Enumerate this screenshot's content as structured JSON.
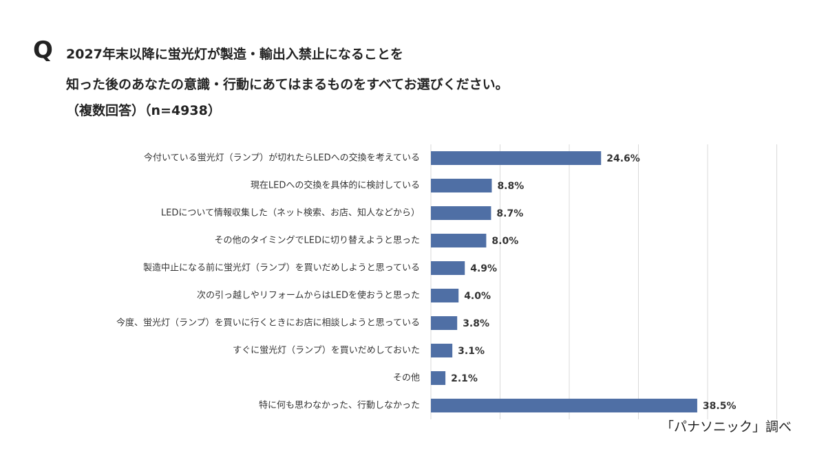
{
  "question": {
    "mark": "Q",
    "line1": "2027年末以降に蛍光灯が製造・輸出入禁止になることを",
    "line2": "知った後のあなたの意識・行動にあてはまるものをすべてお選びください。",
    "line3": "（複数回答）（n=4938）"
  },
  "source_note": "「パナソニック」調べ",
  "chart_data": {
    "type": "bar",
    "orientation": "horizontal",
    "title": "2027年末以降に蛍光灯が製造・輸出入禁止になることを知った後のあなたの意識・行動にあてはまるものをすべてお選びください。（複数回答）（n=4938）",
    "categories": [
      "今付いている蛍光灯（ランプ）が切れたらLEDへの交換を考えている",
      "現在LEDへの交換を具体的に検討している",
      "LEDについて情報収集した（ネット検索、お店、知人などから）",
      "その他のタイミングでLEDに切り替えようと思った",
      "製造中止になる前に蛍光灯（ランプ）を買いだめしようと思っている",
      "次の引っ越しやリフォームからはLEDを使おうと思った",
      "今度、蛍光灯（ランプ）を買いに行くときにお店に相談しようと思っている",
      "すぐに蛍光灯（ランプ）を買いだめしておいた",
      "その他",
      "特に何も思わなかった、行動しなかった"
    ],
    "values": [
      24.6,
      8.8,
      8.7,
      8.0,
      4.9,
      4.0,
      3.8,
      3.1,
      2.1,
      38.5
    ],
    "value_labels": [
      "24.6%",
      "8.8%",
      "8.7%",
      "8.0%",
      "4.9%",
      "4.0%",
      "3.8%",
      "3.1%",
      "2.1%",
      "38.5%"
    ],
    "unit": "%",
    "xlim": [
      0,
      50
    ],
    "xticks": [
      0,
      10,
      20,
      30,
      40,
      50
    ],
    "grid": true,
    "bar_color": "#4f6fa5",
    "grid_color": "#d9d9d9"
  }
}
